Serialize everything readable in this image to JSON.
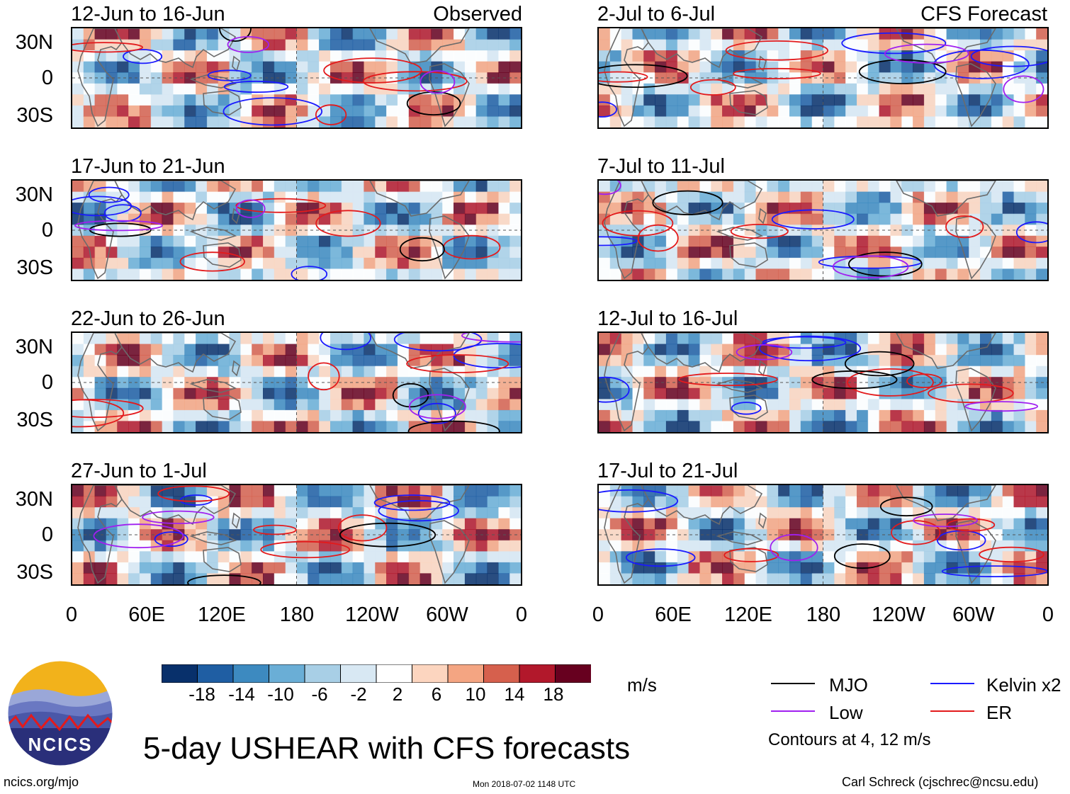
{
  "title": "5-day USHEAR with CFS forecasts",
  "tags": {
    "observed": "Observed",
    "forecast": "CFS Forecast"
  },
  "units": "m/s",
  "contours_note": "Contours at 4, 12 m/s",
  "website": "ncics.org/mjo",
  "timestamp": "Mon 2018-07-02 1148 UTC",
  "author": "Carl Schreck (cjschrec@ncsu.edu)",
  "logo_text": "NCICS",
  "legend": {
    "mjo": "MJO",
    "kelvin": "Kelvin x2",
    "low": "Low",
    "er": "ER",
    "colors": {
      "mjo": "#000000",
      "kelvin": "#1a1aff",
      "low": "#a020f0",
      "er": "#e31a1c"
    }
  },
  "colorbar": {
    "labels": [
      "-18",
      "-14",
      "-10",
      "-6",
      "-2",
      "2",
      "6",
      "10",
      "14",
      "18"
    ],
    "colors": [
      "#08306b",
      "#1f5ea3",
      "#3d8ac0",
      "#6aaed6",
      "#a8cfe6",
      "#d8e8f3",
      "#ffffff",
      "#fcd5bf",
      "#f4a582",
      "#d6604d",
      "#b2182b",
      "#67001f"
    ]
  },
  "chart_data": {
    "type": "heatmap",
    "variable": "USHEAR",
    "ylabels": [
      "30N",
      "0",
      "30S"
    ],
    "xlabels": [
      "0",
      "60E",
      "120E",
      "180",
      "120W",
      "60W",
      "0"
    ],
    "observed_periods": [
      "12-Jun to 16-Jun",
      "17-Jun to 21-Jun",
      "22-Jun to 26-Jun",
      "27-Jun to 1-Jul"
    ],
    "forecast_periods": [
      "2-Jul to 6-Jul",
      "7-Jul to 11-Jul",
      "12-Jul to 16-Jul",
      "17-Jul to 21-Jul"
    ],
    "contour_levels": [
      4,
      12
    ]
  }
}
